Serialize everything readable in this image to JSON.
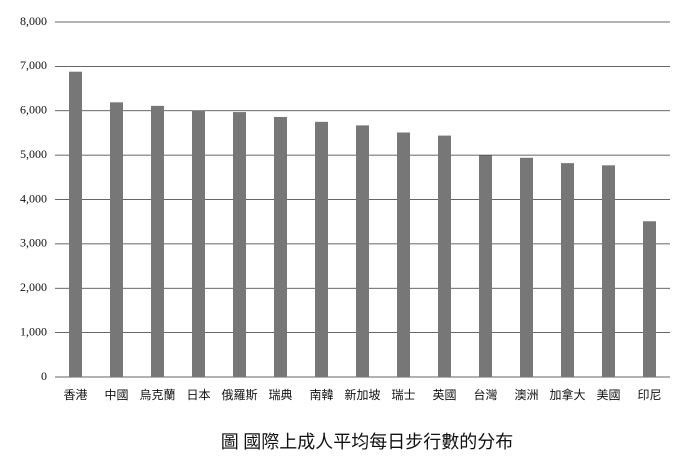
{
  "chart_data": {
    "type": "bar",
    "title": "圖 國際上成人平均每日步行數的分布",
    "categories": [
      "香港",
      "中國",
      "烏克蘭",
      "日本",
      "俄羅斯",
      "瑞典",
      "南韓",
      "新加坡",
      "瑞士",
      "英國",
      "台灣",
      "澳洲",
      "加拿大",
      "美國",
      "印尼"
    ],
    "values": [
      6880,
      6190,
      6110,
      6010,
      5970,
      5860,
      5750,
      5670,
      5510,
      5440,
      4990,
      4940,
      4820,
      4770,
      3510
    ],
    "color": "#777777",
    "ylim": [
      0,
      8000
    ],
    "yticks": [
      0,
      {
        "value": 1000,
        "label": "1,000"
      },
      {
        "value": 2000,
        "label": "2,000"
      },
      {
        "value": 3000,
        "label": "3,000"
      },
      {
        "value": 4000,
        "label": "4,000"
      },
      {
        "value": 5000,
        "label": "5,000"
      },
      {
        "value": 6000,
        "label": "6,000"
      },
      {
        "value": 7000,
        "label": "7,000"
      },
      {
        "value": 8000,
        "label": "8,000"
      }
    ],
    "grid": true
  }
}
